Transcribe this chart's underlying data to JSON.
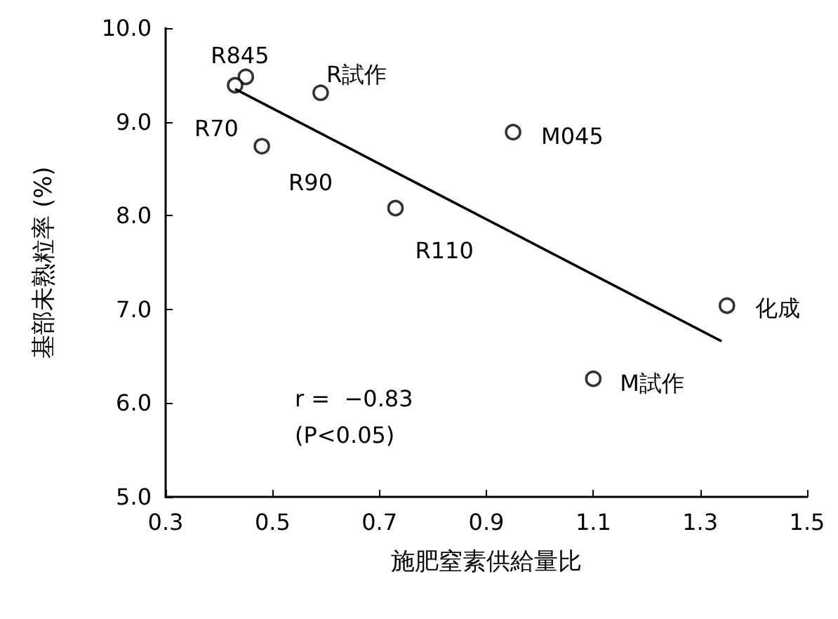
{
  "chart_data": {
    "type": "scatter",
    "xlabel": "施肥窒素供給量比",
    "ylabel": "基部未熟粒率 (%)",
    "xlim": [
      0.3,
      1.5
    ],
    "xticks": [
      {
        "value": 0.3,
        "label": "0.3"
      },
      {
        "value": 0.5,
        "label": "0.5"
      },
      {
        "value": 0.7,
        "label": "0.7"
      },
      {
        "value": 0.9,
        "label": "0.9"
      },
      {
        "value": 1.1,
        "label": "1.1"
      },
      {
        "value": 1.3,
        "label": "1.3"
      },
      {
        "value": 1.5,
        "label": "1.5"
      }
    ],
    "ylim": [
      5,
      10
    ],
    "yticks": [
      {
        "value": 5,
        "label": "5.0"
      },
      {
        "value": 6,
        "label": "6.0"
      },
      {
        "value": 7,
        "label": "7.0"
      },
      {
        "value": 8,
        "label": "8.0"
      },
      {
        "value": 9,
        "label": "9.0"
      },
      {
        "value": 10,
        "label": "10.0"
      }
    ],
    "grid": false,
    "series": [
      {
        "marker": "circle",
        "color": "#000000",
        "x": [
          0.45,
          0.43,
          0.59,
          0.48,
          0.95,
          0.73,
          1.35,
          1.1
        ],
        "values": [
          9.48,
          9.39,
          9.31,
          8.74,
          8.89,
          8.08,
          7.04,
          6.26
        ]
      },
      {
        "type": "line",
        "marker": "none",
        "line_style": "solid",
        "color": "#000000",
        "x": [
          0.43,
          1.34
        ],
        "values": [
          9.35,
          6.66
        ]
      }
    ],
    "annotations": [
      {
        "text": "R845",
        "x": 0.45,
        "y": 9.48
      },
      {
        "text": "R70",
        "x": 0.43,
        "y": 9.39
      },
      {
        "text": "R試作",
        "x": 0.59,
        "y": 9.31
      },
      {
        "text": "R90",
        "x": 0.48,
        "y": 8.74
      },
      {
        "text": "M045",
        "x": 0.95,
        "y": 8.89
      },
      {
        "text": "R110",
        "x": 0.73,
        "y": 8.08
      },
      {
        "text": "化成",
        "x": 1.35,
        "y": 7.04
      },
      {
        "text": "M試作",
        "x": 1.1,
        "y": 6.26
      },
      "r =  −0.83",
      "(P<0.05)"
    ]
  }
}
